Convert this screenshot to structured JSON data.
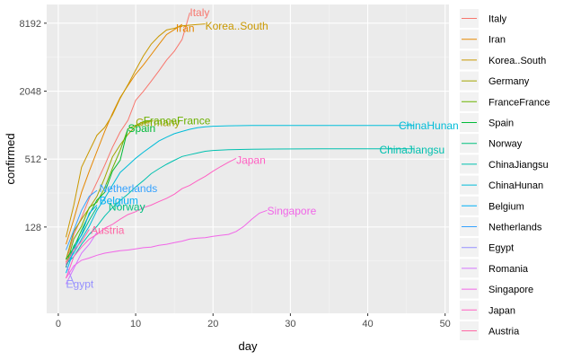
{
  "chart_data": {
    "type": "line",
    "xlabel": "day",
    "ylabel": "confirmed",
    "y_scale": "log2",
    "xlim": [
      -1.5,
      50.5
    ],
    "ylim": [
      22,
      12000
    ],
    "x_ticks": [
      0,
      10,
      20,
      30,
      40,
      50
    ],
    "x_tick_labels": [
      "0",
      "10",
      "20",
      "30",
      "40",
      "50"
    ],
    "y_ticks": [
      128,
      512,
      2048,
      8192
    ],
    "y_tick_labels": [
      "128",
      "512",
      "2048",
      "8192"
    ],
    "grid": true,
    "legend_position": "right",
    "series": [
      {
        "name": "Italy",
        "color": "#F8766D",
        "label": "Italy",
        "x": [
          1,
          2,
          3,
          4,
          5,
          6,
          7,
          8,
          9,
          10,
          11,
          12,
          13,
          14,
          15,
          16,
          17
        ],
        "y": [
          62,
          110,
          155,
          230,
          320,
          450,
          650,
          890,
          1130,
          1700,
          2040,
          2500,
          3090,
          3860,
          4640,
          5880,
          10150
        ]
      },
      {
        "name": "Iran",
        "color": "#E58700",
        "label": "Iran",
        "x": [
          1,
          2,
          3,
          4,
          5,
          6,
          7,
          8,
          9,
          10,
          11,
          12,
          13,
          14,
          15,
          16
        ],
        "y": [
          90,
          150,
          260,
          400,
          600,
          900,
          1300,
          1800,
          2300,
          2900,
          3500,
          4300,
          5300,
          6500,
          7200,
          8000
        ]
      },
      {
        "name": "Korea..South",
        "color": "#C99800",
        "label": "Korea..South",
        "x": [
          1,
          2,
          3,
          4,
          5,
          6,
          7,
          8,
          9,
          10,
          11,
          12,
          13,
          14,
          15,
          16,
          17,
          18,
          19
        ],
        "y": [
          104,
          200,
          433,
          602,
          833,
          977,
          1261,
          1766,
          2337,
          3150,
          4212,
          5328,
          6284,
          7134,
          7382,
          7755,
          7869,
          7979,
          8086
        ]
      },
      {
        "name": "Germany",
        "color": "#A3A500",
        "label": "Germany",
        "x": [
          1,
          2,
          3,
          4,
          5,
          6,
          7,
          8,
          9,
          10,
          11,
          12
        ],
        "y": [
          66,
          117,
          150,
          188,
          240,
          349,
          534,
          684,
          847,
          1000,
          1070,
          1112
        ]
      },
      {
        "name": "FranceFrance",
        "color": "#6BB100",
        "label": "FranceFrance",
        "x": [
          1,
          2,
          3,
          4,
          5,
          6,
          7,
          8,
          9,
          10,
          11,
          12
        ],
        "y": [
          57,
          100,
          130,
          191,
          212,
          285,
          423,
          613,
          949,
          1020,
          1100,
          1126
        ]
      },
      {
        "name": "Spain",
        "color": "#00BA38",
        "label": "Spain",
        "x": [
          1,
          2,
          3,
          4,
          5,
          6,
          7,
          8,
          9
        ],
        "y": [
          66,
          84,
          120,
          165,
          222,
          259,
          400,
          500,
          953
        ]
      },
      {
        "name": "Norway",
        "color": "#00BF7D",
        "label": "Norway",
        "x": [
          1,
          2,
          3,
          4,
          5
        ],
        "y": [
          56,
          87,
          108,
          147,
          192
        ]
      },
      {
        "name": "ChinaJiangsu",
        "color": "#00C0AF",
        "label": "ChinaJiangsu",
        "x": [
          1,
          2,
          3,
          4,
          5,
          6,
          7,
          8,
          9,
          10,
          11,
          12,
          13,
          14,
          15,
          16,
          17,
          18,
          19,
          20,
          22,
          25,
          28,
          31,
          34,
          37,
          40,
          43,
          46
        ],
        "y": [
          60,
          70,
          90,
          110,
          130,
          160,
          190,
          220,
          250,
          290,
          330,
          380,
          420,
          460,
          500,
          540,
          560,
          580,
          600,
          610,
          620,
          625,
          628,
          630,
          631,
          631,
          631,
          631,
          631
        ]
      },
      {
        "name": "ChinaHunan",
        "color": "#00BCD8",
        "label": "ChinaHunan",
        "x": [
          1,
          2,
          3,
          4,
          5,
          6,
          7,
          8,
          9,
          10,
          11,
          12,
          13,
          14,
          15,
          16,
          17,
          18,
          19,
          20,
          22,
          25,
          28,
          31,
          34,
          37,
          40,
          43,
          46
        ],
        "y": [
          60,
          75,
          100,
          130,
          180,
          230,
          300,
          390,
          450,
          520,
          590,
          660,
          740,
          800,
          860,
          900,
          940,
          970,
          990,
          1000,
          1010,
          1015,
          1017,
          1018,
          1018,
          1018,
          1018,
          1018,
          1018
        ]
      },
      {
        "name": "Belgium",
        "color": "#00B0F6",
        "label": "Belgium",
        "x": [
          1,
          2,
          3,
          4,
          5
        ],
        "y": [
          50,
          80,
          110,
          170,
          200
        ]
      },
      {
        "name": "Netherlands",
        "color": "#35A2FF",
        "label": "Netherlands",
        "x": [
          1,
          2,
          3,
          4,
          5
        ],
        "y": [
          80,
          120,
          180,
          240,
          270
        ]
      },
      {
        "name": "Egypt",
        "color": "#9590FF",
        "label": "Egypt",
        "x": [
          1,
          2
        ],
        "y": [
          60,
          40
        ]
      },
      {
        "name": "Romania",
        "color": "#D575FE",
        "label": "",
        "x": [
          1,
          2,
          3,
          4,
          5
        ],
        "y": [
          40,
          55,
          75,
          90,
          115
        ]
      },
      {
        "name": "Singapore",
        "color": "#F166E8",
        "label": "Singapore",
        "x": [
          1,
          2,
          3,
          4,
          5,
          6,
          7,
          8,
          9,
          10,
          11,
          12,
          13,
          14,
          15,
          16,
          17,
          18,
          19,
          20,
          21,
          22,
          23,
          24,
          25,
          26,
          27
        ],
        "y": [
          45,
          58,
          65,
          68,
          72,
          75,
          77,
          79,
          80,
          82,
          84,
          85,
          88,
          90,
          93,
          96,
          100,
          102,
          103,
          106,
          108,
          110,
          117,
          130,
          150,
          170,
          180
        ]
      },
      {
        "name": "Japan",
        "color": "#FF61C3",
        "label": "Japan",
        "x": [
          1,
          2,
          3,
          4,
          5,
          6,
          7,
          8,
          9,
          10,
          11,
          12,
          13,
          14,
          15,
          16,
          17,
          18,
          19,
          20,
          21,
          22,
          23
        ],
        "y": [
          45,
          70,
          85,
          100,
          110,
          125,
          135,
          150,
          165,
          175,
          190,
          200,
          215,
          230,
          250,
          280,
          300,
          330,
          360,
          400,
          440,
          480,
          520
        ]
      },
      {
        "name": "Austria",
        "color": "#FF67A4",
        "label": "Austria",
        "x": [
          1,
          2,
          3,
          4
        ],
        "y": [
          60,
          80,
          95,
          122
        ]
      }
    ],
    "label_points": [
      {
        "series": "Italy",
        "x": 17,
        "y": 10150
      },
      {
        "series": "Iran",
        "x": 15.2,
        "y": 7400
      },
      {
        "series": "Korea..South",
        "x": 19,
        "y": 7750
      },
      {
        "series": "Germany",
        "x": 10,
        "y": 1080
      },
      {
        "series": "FranceFrance",
        "x": 11,
        "y": 1120
      },
      {
        "series": "Spain",
        "x": 9,
        "y": 960
      },
      {
        "series": "Norway",
        "x": 6.5,
        "y": 192
      },
      {
        "series": "ChinaJiangsu",
        "x": 41.5,
        "y": 615
      },
      {
        "series": "ChinaHunan",
        "x": 44,
        "y": 1010
      },
      {
        "series": "Belgium",
        "x": 5.3,
        "y": 220
      },
      {
        "series": "Netherlands",
        "x": 5.3,
        "y": 280
      },
      {
        "series": "Egypt",
        "x": 1,
        "y": 40
      },
      {
        "series": "Singapore",
        "x": 27,
        "y": 178
      },
      {
        "series": "Japan",
        "x": 23,
        "y": 500
      },
      {
        "series": "Austria",
        "x": 4.2,
        "y": 120
      }
    ]
  }
}
